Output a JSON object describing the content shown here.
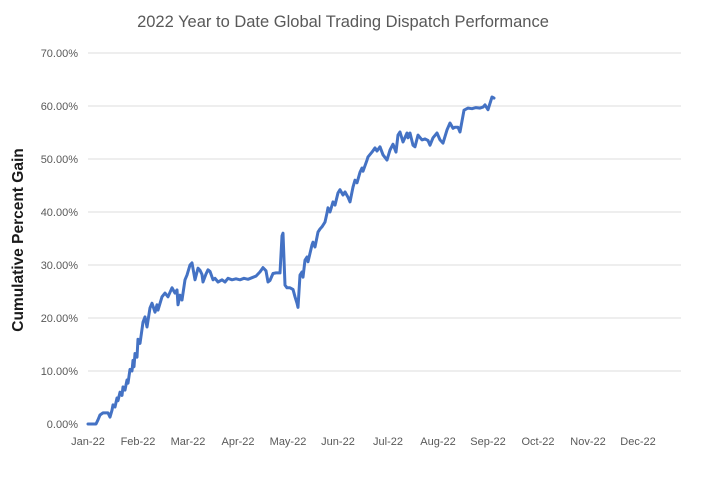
{
  "chart_data": {
    "type": "line",
    "title": "2022 Year to Date Global Trading Dispatch Performance",
    "ylabel": "Cumulative Percent Gain",
    "xlabel": "",
    "y_tick_labels": [
      "0.00%",
      "10.00%",
      "20.00%",
      "30.00%",
      "40.00%",
      "50.00%",
      "60.00%",
      "70.00%"
    ],
    "x_tick_labels": [
      "Jan-22",
      "Feb-22",
      "Mar-22",
      "Apr-22",
      "May-22",
      "Jun-22",
      "Jul-22",
      "Aug-22",
      "Sep-22",
      "Oct-22",
      "Nov-22",
      "Dec-22"
    ],
    "ylim": [
      0,
      70
    ],
    "xlim_months": [
      0,
      11.86
    ],
    "grid": "horizontal-major-only-no-zero-line",
    "legend": "none",
    "x_unit": "months since Jan-22",
    "series": [
      {
        "name": "cumulative-percent-gain",
        "color": "#4472C4",
        "points": [
          [
            0.0,
            0.0
          ],
          [
            0.16,
            0.0
          ],
          [
            0.2,
            0.8
          ],
          [
            0.24,
            1.7
          ],
          [
            0.3,
            2.1
          ],
          [
            0.4,
            2.1
          ],
          [
            0.44,
            1.3
          ],
          [
            0.48,
            2.6
          ],
          [
            0.5,
            3.6
          ],
          [
            0.54,
            3.2
          ],
          [
            0.58,
            4.9
          ],
          [
            0.6,
            4.4
          ],
          [
            0.64,
            6.0
          ],
          [
            0.68,
            5.4
          ],
          [
            0.7,
            7.0
          ],
          [
            0.74,
            6.4
          ],
          [
            0.78,
            8.3
          ],
          [
            0.8,
            7.7
          ],
          [
            0.84,
            10.3
          ],
          [
            0.88,
            10.0
          ],
          [
            0.9,
            12.0
          ],
          [
            0.92,
            10.8
          ],
          [
            0.94,
            13.3
          ],
          [
            0.98,
            12.6
          ],
          [
            1.0,
            16.0
          ],
          [
            1.04,
            15.2
          ],
          [
            1.1,
            19.2
          ],
          [
            1.14,
            20.2
          ],
          [
            1.18,
            18.3
          ],
          [
            1.24,
            21.9
          ],
          [
            1.28,
            22.8
          ],
          [
            1.34,
            21.1
          ],
          [
            1.38,
            22.5
          ],
          [
            1.4,
            21.5
          ],
          [
            1.48,
            24.0
          ],
          [
            1.54,
            24.7
          ],
          [
            1.6,
            24.0
          ],
          [
            1.68,
            25.7
          ],
          [
            1.74,
            24.7
          ],
          [
            1.78,
            25.3
          ],
          [
            1.8,
            22.5
          ],
          [
            1.84,
            24.3
          ],
          [
            1.88,
            23.4
          ],
          [
            1.94,
            27.2
          ],
          [
            1.98,
            28.1
          ],
          [
            2.04,
            30.0
          ],
          [
            2.08,
            30.4
          ],
          [
            2.14,
            27.2
          ],
          [
            2.2,
            29.4
          ],
          [
            2.24,
            29.0
          ],
          [
            2.28,
            28.2
          ],
          [
            2.3,
            26.8
          ],
          [
            2.36,
            28.3
          ],
          [
            2.4,
            29.1
          ],
          [
            2.44,
            28.8
          ],
          [
            2.5,
            27.2
          ],
          [
            2.54,
            27.5
          ],
          [
            2.6,
            26.8
          ],
          [
            2.68,
            27.2
          ],
          [
            2.74,
            26.8
          ],
          [
            2.8,
            27.5
          ],
          [
            2.88,
            27.2
          ],
          [
            2.96,
            27.4
          ],
          [
            3.04,
            27.2
          ],
          [
            3.12,
            27.5
          ],
          [
            3.2,
            27.3
          ],
          [
            3.28,
            27.6
          ],
          [
            3.36,
            27.9
          ],
          [
            3.44,
            28.7
          ],
          [
            3.5,
            29.5
          ],
          [
            3.56,
            28.9
          ],
          [
            3.6,
            26.8
          ],
          [
            3.64,
            27.1
          ],
          [
            3.7,
            28.4
          ],
          [
            3.76,
            28.5
          ],
          [
            3.84,
            28.5
          ],
          [
            3.88,
            35.5
          ],
          [
            3.9,
            36.0
          ],
          [
            3.94,
            26.2
          ],
          [
            3.98,
            25.7
          ],
          [
            4.04,
            25.7
          ],
          [
            4.1,
            25.4
          ],
          [
            4.14,
            24.0
          ],
          [
            4.18,
            22.8
          ],
          [
            4.2,
            22.0
          ],
          [
            4.24,
            28.1
          ],
          [
            4.28,
            28.7
          ],
          [
            4.3,
            27.7
          ],
          [
            4.34,
            30.9
          ],
          [
            4.38,
            31.5
          ],
          [
            4.4,
            30.6
          ],
          [
            4.44,
            32.2
          ],
          [
            4.48,
            33.8
          ],
          [
            4.5,
            34.3
          ],
          [
            4.54,
            33.4
          ],
          [
            4.6,
            36.2
          ],
          [
            4.64,
            36.8
          ],
          [
            4.68,
            37.2
          ],
          [
            4.74,
            38.1
          ],
          [
            4.78,
            39.8
          ],
          [
            4.8,
            40.8
          ],
          [
            4.84,
            40.0
          ],
          [
            4.9,
            41.9
          ],
          [
            4.94,
            41.3
          ],
          [
            5.0,
            43.6
          ],
          [
            5.04,
            44.2
          ],
          [
            5.1,
            43.2
          ],
          [
            5.14,
            43.8
          ],
          [
            5.2,
            42.8
          ],
          [
            5.24,
            41.9
          ],
          [
            5.3,
            44.7
          ],
          [
            5.34,
            46.0
          ],
          [
            5.38,
            45.5
          ],
          [
            5.44,
            47.5
          ],
          [
            5.48,
            48.3
          ],
          [
            5.5,
            47.7
          ],
          [
            5.58,
            49.8
          ],
          [
            5.6,
            50.4
          ],
          [
            5.68,
            51.3
          ],
          [
            5.74,
            52.1
          ],
          [
            5.78,
            51.5
          ],
          [
            5.84,
            52.3
          ],
          [
            5.9,
            50.8
          ],
          [
            5.98,
            49.8
          ],
          [
            6.04,
            51.7
          ],
          [
            6.1,
            52.8
          ],
          [
            6.16,
            51.3
          ],
          [
            6.2,
            54.5
          ],
          [
            6.24,
            55.1
          ],
          [
            6.3,
            53.2
          ],
          [
            6.38,
            54.9
          ],
          [
            6.4,
            54.0
          ],
          [
            6.44,
            54.9
          ],
          [
            6.5,
            52.6
          ],
          [
            6.54,
            52.3
          ],
          [
            6.6,
            54.5
          ],
          [
            6.68,
            53.6
          ],
          [
            6.74,
            53.8
          ],
          [
            6.8,
            53.5
          ],
          [
            6.84,
            52.6
          ],
          [
            6.9,
            54.0
          ],
          [
            6.98,
            54.9
          ],
          [
            7.04,
            53.6
          ],
          [
            7.1,
            53.0
          ],
          [
            7.18,
            55.5
          ],
          [
            7.24,
            56.8
          ],
          [
            7.3,
            55.8
          ],
          [
            7.34,
            56.0
          ],
          [
            7.4,
            56.0
          ],
          [
            7.44,
            55.1
          ],
          [
            7.52,
            59.2
          ],
          [
            7.6,
            59.6
          ],
          [
            7.68,
            59.5
          ],
          [
            7.76,
            59.7
          ],
          [
            7.84,
            59.6
          ],
          [
            7.9,
            59.8
          ],
          [
            7.94,
            60.2
          ],
          [
            8.0,
            59.3
          ],
          [
            8.08,
            61.7
          ],
          [
            8.12,
            61.5
          ]
        ]
      }
    ]
  },
  "colors": {
    "line": "#4472C4",
    "gridline": "#DCDCDC",
    "tick_text": "#595959",
    "title_text": "#595959",
    "axis_title_text": "#1A1A1A",
    "background": "#FFFFFF"
  }
}
